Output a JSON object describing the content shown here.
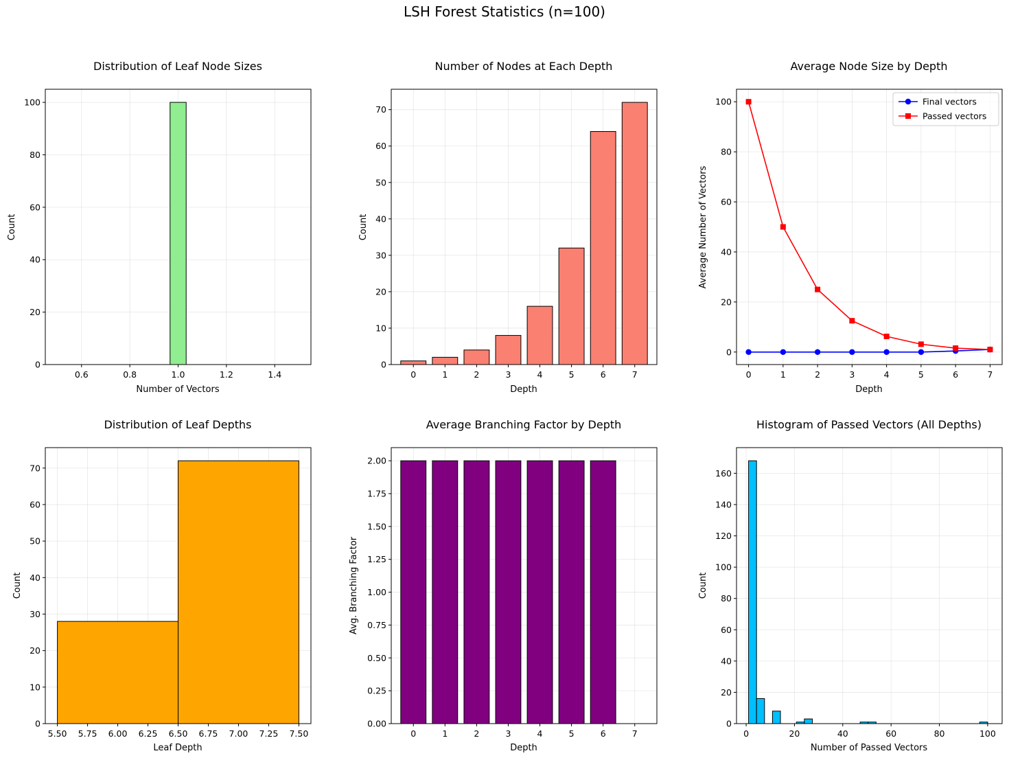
{
  "figure": {
    "suptitle": "LSH Forest Statistics (n=100)"
  },
  "chart_data": [
    {
      "id": "leaf-sizes",
      "type": "bar",
      "subtype": "histogram",
      "title": "Distribution of Leaf Node Sizes",
      "xlabel": "Number of Vectors",
      "ylabel": "Count",
      "xlim": [
        0.45,
        1.55
      ],
      "ylim": [
        0,
        105
      ],
      "xticks": [
        0.6,
        0.8,
        1.0,
        1.2,
        1.4
      ],
      "xtick_labels": [
        "0.6",
        "0.8",
        "1.0",
        "1.2",
        "1.4"
      ],
      "yticks": [
        0,
        20,
        40,
        60,
        80,
        100
      ],
      "ytick_labels": [
        "0",
        "20",
        "40",
        "60",
        "80",
        "100"
      ],
      "bins": [
        {
          "x0": 0.9667,
          "x1": 1.0333,
          "count": 100
        }
      ],
      "baseline_range": [
        0.5,
        1.5
      ],
      "color": "#90ee90",
      "edgecolor": "#000000",
      "grid": true
    },
    {
      "id": "nodes-per-depth",
      "type": "bar",
      "title": "Number of Nodes at Each Depth",
      "xlabel": "Depth",
      "ylabel": "Count",
      "categories": [
        "0",
        "1",
        "2",
        "3",
        "4",
        "5",
        "6",
        "7"
      ],
      "values": [
        1,
        2,
        4,
        8,
        16,
        32,
        64,
        72
      ],
      "xlim": [
        -0.7,
        7.7
      ],
      "ylim": [
        0,
        75.6
      ],
      "yticks": [
        0,
        10,
        20,
        30,
        40,
        50,
        60,
        70
      ],
      "ytick_labels": [
        "0",
        "10",
        "20",
        "30",
        "40",
        "50",
        "60",
        "70"
      ],
      "color": "#fa8072",
      "edgecolor": "#000000",
      "grid": true
    },
    {
      "id": "avg-node-size",
      "type": "line",
      "title": "Average Node Size by Depth",
      "xlabel": "Depth",
      "ylabel": "Average Number of Vectors",
      "x": [
        0,
        1,
        2,
        3,
        4,
        5,
        6,
        7
      ],
      "xtick_labels": [
        "0",
        "1",
        "2",
        "3",
        "4",
        "5",
        "6",
        "7"
      ],
      "xlim": [
        -0.35,
        7.35
      ],
      "ylim": [
        -5,
        105
      ],
      "yticks": [
        0,
        20,
        40,
        60,
        80,
        100
      ],
      "ytick_labels": [
        "0",
        "20",
        "40",
        "60",
        "80",
        "100"
      ],
      "series": [
        {
          "name": "Final vectors",
          "values": [
            0,
            0,
            0,
            0,
            0,
            0,
            0.44,
            1.0
          ],
          "color": "#0000ff",
          "marker": "circle"
        },
        {
          "name": "Passed vectors",
          "values": [
            100,
            50,
            25,
            12.5,
            6.25,
            3.125,
            1.56,
            1.0
          ],
          "color": "#ff0000",
          "marker": "square"
        }
      ],
      "legend": "top-right",
      "grid": true
    },
    {
      "id": "leaf-depths",
      "type": "bar",
      "subtype": "histogram",
      "title": "Distribution of Leaf Depths",
      "xlabel": "Leaf Depth",
      "ylabel": "Count",
      "xlim": [
        5.4,
        7.6
      ],
      "ylim": [
        0,
        75.6
      ],
      "xticks": [
        5.5,
        5.75,
        6.0,
        6.25,
        6.5,
        6.75,
        7.0,
        7.25,
        7.5
      ],
      "xtick_labels": [
        "5.50",
        "5.75",
        "6.00",
        "6.25",
        "6.50",
        "6.75",
        "7.00",
        "7.25",
        "7.50"
      ],
      "yticks": [
        0,
        10,
        20,
        30,
        40,
        50,
        60,
        70
      ],
      "ytick_labels": [
        "0",
        "10",
        "20",
        "30",
        "40",
        "50",
        "60",
        "70"
      ],
      "bins": [
        {
          "x0": 5.5,
          "x1": 6.5,
          "count": 28
        },
        {
          "x0": 6.5,
          "x1": 7.5,
          "count": 72
        }
      ],
      "color": "#ffa500",
      "edgecolor": "#000000",
      "grid": true
    },
    {
      "id": "branching-factor",
      "type": "bar",
      "title": "Average Branching Factor by Depth",
      "xlabel": "Depth",
      "ylabel": "Avg. Branching Factor",
      "categories": [
        "0",
        "1",
        "2",
        "3",
        "4",
        "5",
        "6",
        "7"
      ],
      "values": [
        2,
        2,
        2,
        2,
        2,
        2,
        2,
        0
      ],
      "xlim": [
        -0.7,
        7.7
      ],
      "ylim": [
        0,
        2.1
      ],
      "yticks": [
        0,
        0.25,
        0.5,
        0.75,
        1.0,
        1.25,
        1.5,
        1.75,
        2.0
      ],
      "ytick_labels": [
        "0.00",
        "0.25",
        "0.50",
        "0.75",
        "1.00",
        "1.25",
        "1.50",
        "1.75",
        "2.00"
      ],
      "color": "#800080",
      "edgecolor": "#000000",
      "grid": true
    },
    {
      "id": "passed-vectors-hist",
      "type": "bar",
      "subtype": "histogram",
      "title": "Histogram of Passed Vectors (All Depths)",
      "xlabel": "Number of Passed Vectors",
      "ylabel": "Count",
      "xlim": [
        -4,
        106
      ],
      "ylim": [
        0,
        176.4
      ],
      "xticks": [
        0,
        20,
        40,
        60,
        80,
        100
      ],
      "xtick_labels": [
        "0",
        "20",
        "40",
        "60",
        "80",
        "100"
      ],
      "yticks": [
        0,
        20,
        40,
        60,
        80,
        100,
        120,
        140,
        160
      ],
      "ytick_labels": [
        "0",
        "20",
        "40",
        "60",
        "80",
        "100",
        "120",
        "140",
        "160"
      ],
      "bin_start": 1,
      "bin_width": 3.3,
      "counts": [
        168,
        16,
        0,
        8,
        0,
        0,
        1,
        3,
        0,
        0,
        0,
        0,
        0,
        0,
        1,
        1,
        0,
        0,
        0,
        0,
        0,
        0,
        0,
        0,
        0,
        0,
        0,
        0,
        0,
        1
      ],
      "color": "#00bfff",
      "edgecolor": "#000000",
      "grid": true
    }
  ]
}
